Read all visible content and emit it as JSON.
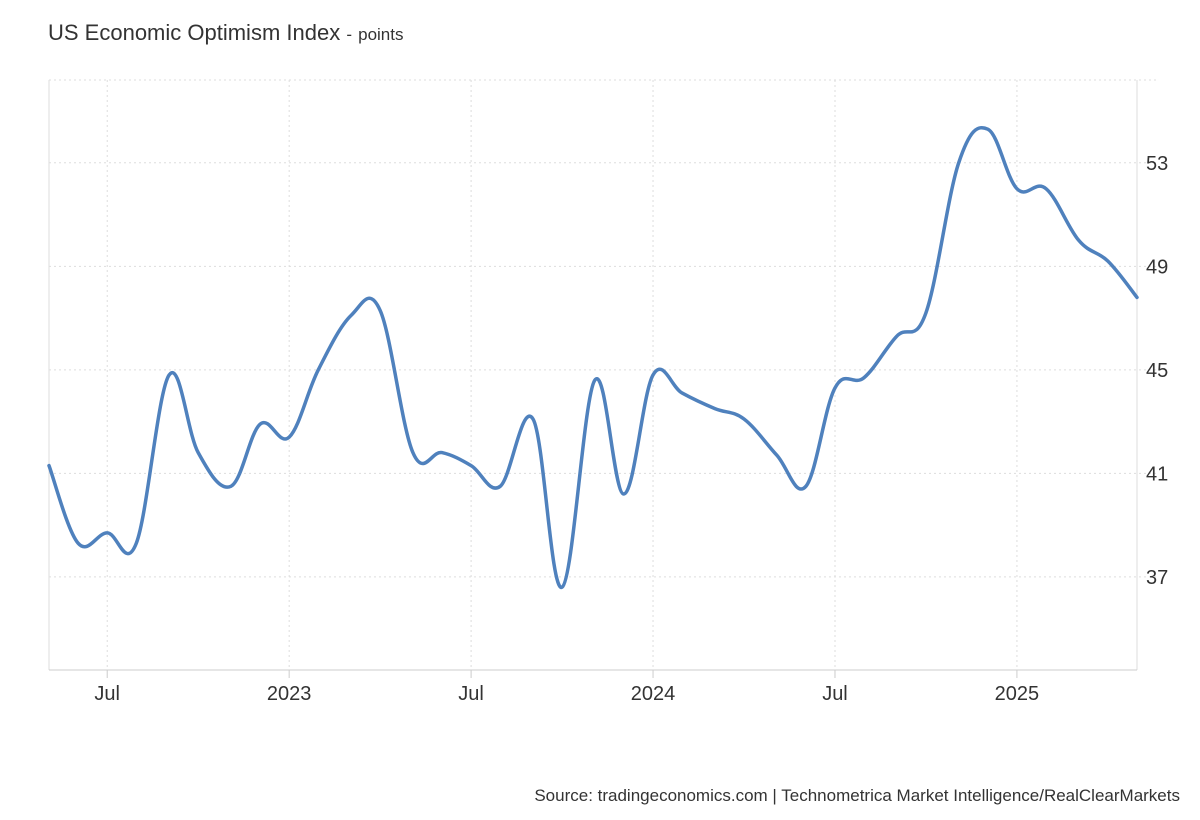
{
  "title": "US Economic Optimism Index",
  "title_separator": "-",
  "unit": "points",
  "source": "Source: tradingeconomics.com | Technometrica Market Intelligence/RealClearMarkets",
  "line_color": "#4f81bd",
  "chart_data": {
    "type": "line",
    "title": "US Economic Optimism Index",
    "ylabel": "points",
    "xlabel": "",
    "ylim": [
      33.4,
      56.2
    ],
    "y_ticks": [
      37,
      41,
      45,
      49,
      53
    ],
    "x_ticks": [
      {
        "label": "Jul",
        "x": 2022.5
      },
      {
        "label": "2023",
        "x": 2023.0
      },
      {
        "label": "Jul",
        "x": 2023.5
      },
      {
        "label": "2024",
        "x": 2024.0
      },
      {
        "label": "Jul",
        "x": 2024.5
      },
      {
        "label": "2025",
        "x": 2025.0
      }
    ],
    "xlim": [
      2022.34,
      2025.33
    ],
    "grid": true,
    "series": [
      {
        "name": "US Economic Optimism Index",
        "x": [
          2022.34,
          2022.42,
          2022.5,
          2022.58,
          2022.67,
          2022.75,
          2022.84,
          2022.92,
          2023.0,
          2023.08,
          2023.17,
          2023.25,
          2023.34,
          2023.42,
          2023.5,
          2023.58,
          2023.67,
          2023.75,
          2023.84,
          2023.92,
          2024.0,
          2024.08,
          2024.17,
          2024.25,
          2024.34,
          2024.42,
          2024.5,
          2024.58,
          2024.67,
          2024.75,
          2024.84,
          2024.92,
          2025.0,
          2025.08,
          2025.17,
          2025.25,
          2025.33
        ],
        "values": [
          41.3,
          38.3,
          38.7,
          38.3,
          44.8,
          41.8,
          40.5,
          42.9,
          42.4,
          45.0,
          47.1,
          47.3,
          41.8,
          41.8,
          41.3,
          40.5,
          43.1,
          36.6,
          44.6,
          40.2,
          44.8,
          44.1,
          43.5,
          43.1,
          41.7,
          40.5,
          44.3,
          44.7,
          46.3,
          47.2,
          53.0,
          54.3,
          52.0,
          52.0,
          50.0,
          49.2,
          47.8
        ]
      }
    ]
  }
}
